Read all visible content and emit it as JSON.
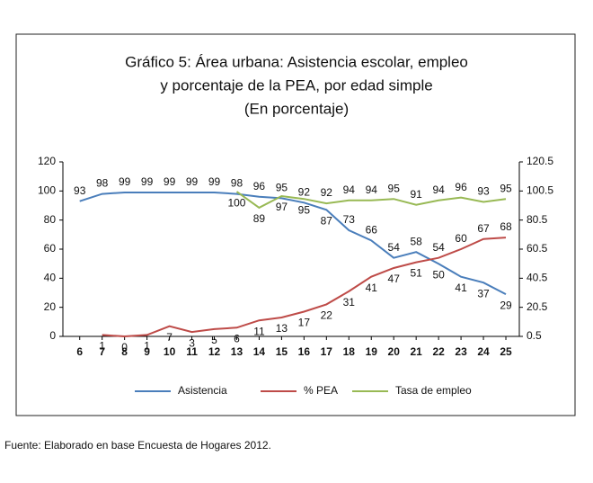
{
  "chart_data": {
    "type": "line",
    "title": [
      "Gráfico 5: Área urbana: Asistencia escolar, empleo",
      "y porcentaje de la PEA, por edad simple",
      "(En porcentaje)"
    ],
    "x": [
      6,
      7,
      8,
      9,
      10,
      11,
      12,
      13,
      14,
      15,
      16,
      17,
      18,
      19,
      20,
      21,
      22,
      23,
      24,
      25
    ],
    "xlim": [
      5.25,
      25.6
    ],
    "ylim": [
      0,
      120
    ],
    "yticks": [
      0,
      20,
      40,
      60,
      80,
      100,
      120
    ],
    "y2lim": [
      0.5,
      120.5
    ],
    "y2ticks": [
      0.5,
      20.5,
      40.5,
      60.5,
      80.5,
      100.5,
      120.5
    ],
    "grid": false,
    "legend": "bottom",
    "series": [
      {
        "name": "Asistencia",
        "color": "#4a7ebb",
        "values": [
          93,
          98,
          99,
          99,
          99,
          99,
          99,
          98,
          96,
          95,
          92,
          87,
          73,
          66,
          54,
          58,
          50,
          41,
          37,
          29
        ]
      },
      {
        "name": "% PEA",
        "color": "#be4b48",
        "values": [
          null,
          1,
          0,
          1,
          7,
          3,
          5,
          6,
          11,
          13,
          17,
          22,
          31,
          41,
          47,
          51,
          54,
          60,
          67,
          68
        ]
      },
      {
        "name": "Tasa de empleo",
        "color": "#98b954",
        "axis": "y2",
        "values": [
          null,
          null,
          null,
          null,
          null,
          null,
          null,
          100,
          89,
          97,
          95,
          92,
          94,
          94,
          95,
          91,
          94,
          96,
          93,
          95
        ]
      }
    ],
    "source": "Fuente: Elaborado en base Encuesta de Hogares 2012."
  }
}
